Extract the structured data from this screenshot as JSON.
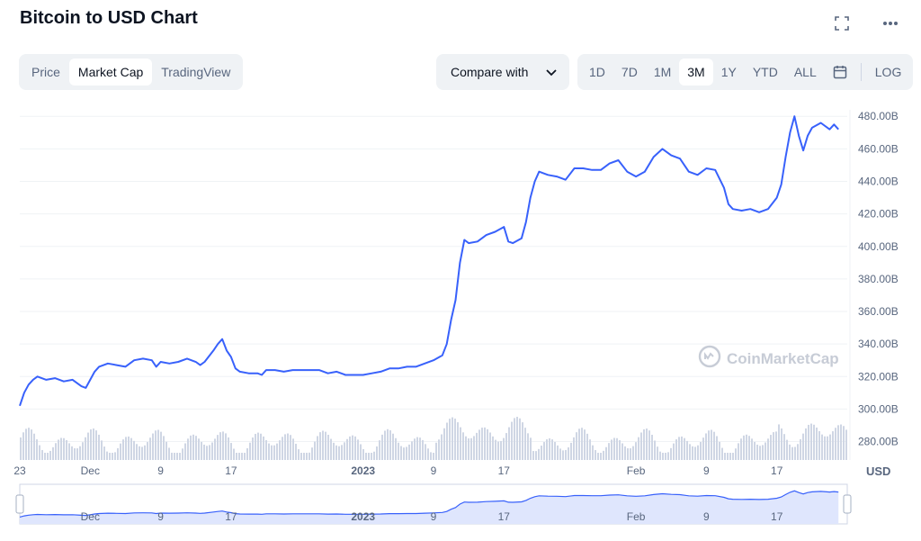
{
  "title": "Bitcoin to USD Chart",
  "view_tabs": [
    {
      "label": "Price",
      "active": false
    },
    {
      "label": "Market Cap",
      "active": true
    },
    {
      "label": "TradingView",
      "active": false
    }
  ],
  "compare": {
    "label": "Compare with"
  },
  "ranges": [
    {
      "label": "1D",
      "active": false
    },
    {
      "label": "7D",
      "active": false
    },
    {
      "label": "1M",
      "active": false
    },
    {
      "label": "3M",
      "active": true
    },
    {
      "label": "1Y",
      "active": false
    },
    {
      "label": "YTD",
      "active": false
    },
    {
      "label": "ALL",
      "active": false
    }
  ],
  "log_label": "LOG",
  "currency": "USD",
  "watermark": "CoinMarketCap",
  "colors": {
    "line": "#3861fb",
    "volume": "#cfd6e4",
    "grid": "#eff2f5",
    "navigator_fill": "#dfe6fd"
  },
  "icons": [
    "fullscreen-icon",
    "more-icon",
    "chevron-down-icon",
    "calendar-icon",
    "coinmarketcap-logo-icon"
  ],
  "chart_data": {
    "type": "line",
    "title": "",
    "ylabel": "",
    "y_ticks": [
      "280.00B",
      "300.00B",
      "320.00B",
      "340.00B",
      "360.00B",
      "380.00B",
      "400.00B",
      "420.00B",
      "440.00B",
      "460.00B",
      "480.00B"
    ],
    "ylim": [
      272,
      484
    ],
    "x_ticks": [
      {
        "label": "23",
        "day": 0,
        "bold": false
      },
      {
        "label": "Dec",
        "day": 8,
        "bold": false
      },
      {
        "label": "9",
        "day": 16,
        "bold": false
      },
      {
        "label": "17",
        "day": 24,
        "bold": false
      },
      {
        "label": "2023",
        "day": 39,
        "bold": true
      },
      {
        "label": "9",
        "day": 47,
        "bold": false
      },
      {
        "label": "17",
        "day": 55,
        "bold": false
      },
      {
        "label": "Feb",
        "day": 70,
        "bold": false
      },
      {
        "label": "9",
        "day": 78,
        "bold": false
      },
      {
        "label": "17",
        "day": 86,
        "bold": false
      }
    ],
    "series": [
      {
        "values": [
          [
            0,
            302
          ],
          [
            0.5,
            310
          ],
          [
            1,
            315
          ],
          [
            1.5,
            318
          ],
          [
            2,
            320
          ],
          [
            3,
            318
          ],
          [
            4,
            319
          ],
          [
            5,
            317
          ],
          [
            6,
            318
          ],
          [
            7,
            314
          ],
          [
            7.5,
            313
          ],
          [
            8,
            318
          ],
          [
            8.5,
            323
          ],
          [
            9,
            326
          ],
          [
            10,
            328
          ],
          [
            11,
            327
          ],
          [
            12,
            326
          ],
          [
            13,
            330
          ],
          [
            14,
            331
          ],
          [
            15,
            330
          ],
          [
            15.5,
            326
          ],
          [
            16,
            329
          ],
          [
            17,
            328
          ],
          [
            18,
            329
          ],
          [
            19,
            331
          ],
          [
            20,
            329
          ],
          [
            20.5,
            327
          ],
          [
            21,
            329
          ],
          [
            22,
            336
          ],
          [
            22.5,
            340
          ],
          [
            23,
            343
          ],
          [
            23.5,
            336
          ],
          [
            24,
            332
          ],
          [
            24.5,
            325
          ],
          [
            25,
            323
          ],
          [
            26,
            322
          ],
          [
            27,
            322
          ],
          [
            27.5,
            321
          ],
          [
            28,
            324
          ],
          [
            29,
            324
          ],
          [
            30,
            323
          ],
          [
            31,
            324
          ],
          [
            32,
            324
          ],
          [
            33,
            324
          ],
          [
            34,
            324
          ],
          [
            35,
            322
          ],
          [
            36,
            323
          ],
          [
            37,
            321
          ],
          [
            38,
            321
          ],
          [
            39,
            321
          ],
          [
            40,
            322
          ],
          [
            41,
            323
          ],
          [
            42,
            325
          ],
          [
            43,
            325
          ],
          [
            44,
            326
          ],
          [
            45,
            326
          ],
          [
            46,
            328
          ],
          [
            47,
            330
          ],
          [
            48,
            333
          ],
          [
            48.5,
            340
          ],
          [
            49,
            355
          ],
          [
            49.5,
            367
          ],
          [
            50,
            390
          ],
          [
            50.5,
            404
          ],
          [
            51,
            402
          ],
          [
            52,
            403
          ],
          [
            53,
            407
          ],
          [
            54,
            409
          ],
          [
            55,
            412
          ],
          [
            55.5,
            403
          ],
          [
            56,
            402
          ],
          [
            57,
            405
          ],
          [
            57.5,
            415
          ],
          [
            58,
            430
          ],
          [
            58.5,
            440
          ],
          [
            59,
            446
          ],
          [
            60,
            444
          ],
          [
            61,
            443
          ],
          [
            62,
            441
          ],
          [
            63,
            448
          ],
          [
            64,
            448
          ],
          [
            65,
            447
          ],
          [
            66,
            447
          ],
          [
            67,
            451
          ],
          [
            68,
            453
          ],
          [
            69,
            446
          ],
          [
            70,
            443
          ],
          [
            71,
            446
          ],
          [
            72,
            455
          ],
          [
            73,
            460
          ],
          [
            74,
            456
          ],
          [
            75,
            454
          ],
          [
            76,
            446
          ],
          [
            77,
            444
          ],
          [
            78,
            448
          ],
          [
            79,
            447
          ],
          [
            80,
            436
          ],
          [
            80.5,
            426
          ],
          [
            81,
            423
          ],
          [
            82,
            422
          ],
          [
            83,
            423
          ],
          [
            84,
            421
          ],
          [
            85,
            423
          ],
          [
            86,
            430
          ],
          [
            86.5,
            438
          ],
          [
            87,
            455
          ],
          [
            87.5,
            470
          ],
          [
            88,
            480
          ],
          [
            88.5,
            468
          ],
          [
            89,
            459
          ],
          [
            89.5,
            468
          ],
          [
            90,
            473
          ],
          [
            91,
            476
          ],
          [
            92,
            472
          ],
          [
            92.5,
            475
          ],
          [
            93,
            472
          ]
        ]
      }
    ]
  }
}
